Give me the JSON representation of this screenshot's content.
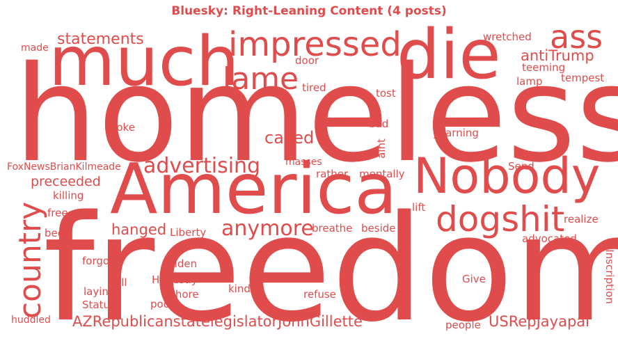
{
  "colors": {
    "accent": "#e04c4c"
  },
  "chart_data": {
    "type": "wordcloud",
    "title": "Bluesky: Right-Leaning Content (4 posts)",
    "words": [
      {
        "text": "homeless",
        "weight": 100
      },
      {
        "text": "freedom",
        "weight": 98
      },
      {
        "text": "America",
        "weight": 62
      },
      {
        "text": "much",
        "weight": 58
      },
      {
        "text": "die",
        "weight": 58
      },
      {
        "text": "Nobody",
        "weight": 44
      },
      {
        "text": "impressed",
        "weight": 32
      },
      {
        "text": "dogshit",
        "weight": 32
      },
      {
        "text": "country",
        "weight": 30
      },
      {
        "text": "ass",
        "weight": 30
      },
      {
        "text": "lame",
        "weight": 28
      },
      {
        "text": "advertising",
        "weight": 22
      },
      {
        "text": "anymore",
        "weight": 22
      },
      {
        "text": "AZRepublicanstatelegislatorJohnGillette",
        "weight": 18
      },
      {
        "text": "called",
        "weight": 18
      },
      {
        "text": "USRepJayapal",
        "weight": 18
      },
      {
        "text": "statements",
        "weight": 17
      },
      {
        "text": "antiTrump",
        "weight": 16
      },
      {
        "text": "preceeded",
        "weight": 16
      },
      {
        "text": "hanged",
        "weight": 16
      },
      {
        "text": "teeming",
        "weight": 12
      },
      {
        "text": "tempest",
        "weight": 12
      },
      {
        "text": "wretched",
        "weight": 12
      },
      {
        "text": "made",
        "weight": 11
      },
      {
        "text": "door",
        "weight": 11
      },
      {
        "text": "tired",
        "weight": 11
      },
      {
        "text": "tost",
        "weight": 11
      },
      {
        "text": "lamp",
        "weight": 11
      },
      {
        "text": "broke",
        "weight": 11
      },
      {
        "text": "bad",
        "weight": 11
      },
      {
        "text": "yearning",
        "weight": 11
      },
      {
        "text": "aint",
        "weight": 11
      },
      {
        "text": "FoxNewsBrianKilmeade",
        "weight": 11
      },
      {
        "text": "masses",
        "weight": 11
      },
      {
        "text": "rather",
        "weight": 11
      },
      {
        "text": "mentally",
        "weight": 11
      },
      {
        "text": "Send",
        "weight": 11
      },
      {
        "text": "killing",
        "weight": 11
      },
      {
        "text": "free",
        "weight": 11
      },
      {
        "text": "lift",
        "weight": 11
      },
      {
        "text": "realize",
        "weight": 11
      },
      {
        "text": "bed",
        "weight": 11
      },
      {
        "text": "Liberty",
        "weight": 11
      },
      {
        "text": "breathe",
        "weight": 11
      },
      {
        "text": "beside",
        "weight": 11
      },
      {
        "text": "advocated",
        "weight": 11
      },
      {
        "text": "Inscription",
        "weight": 11
      },
      {
        "text": "forgot",
        "weight": 11
      },
      {
        "text": "golden",
        "weight": 11
      },
      {
        "text": "Honestly",
        "weight": 11
      },
      {
        "text": "Give",
        "weight": 11
      },
      {
        "text": "ill",
        "weight": 11
      },
      {
        "text": "laying",
        "weight": 11
      },
      {
        "text": "kind",
        "weight": 11
      },
      {
        "text": "shore",
        "weight": 11
      },
      {
        "text": "refuse",
        "weight": 11
      },
      {
        "text": "Statue",
        "weight": 11
      },
      {
        "text": "poor",
        "weight": 11
      },
      {
        "text": "huddled",
        "weight": 11
      },
      {
        "text": "people",
        "weight": 11
      }
    ]
  }
}
